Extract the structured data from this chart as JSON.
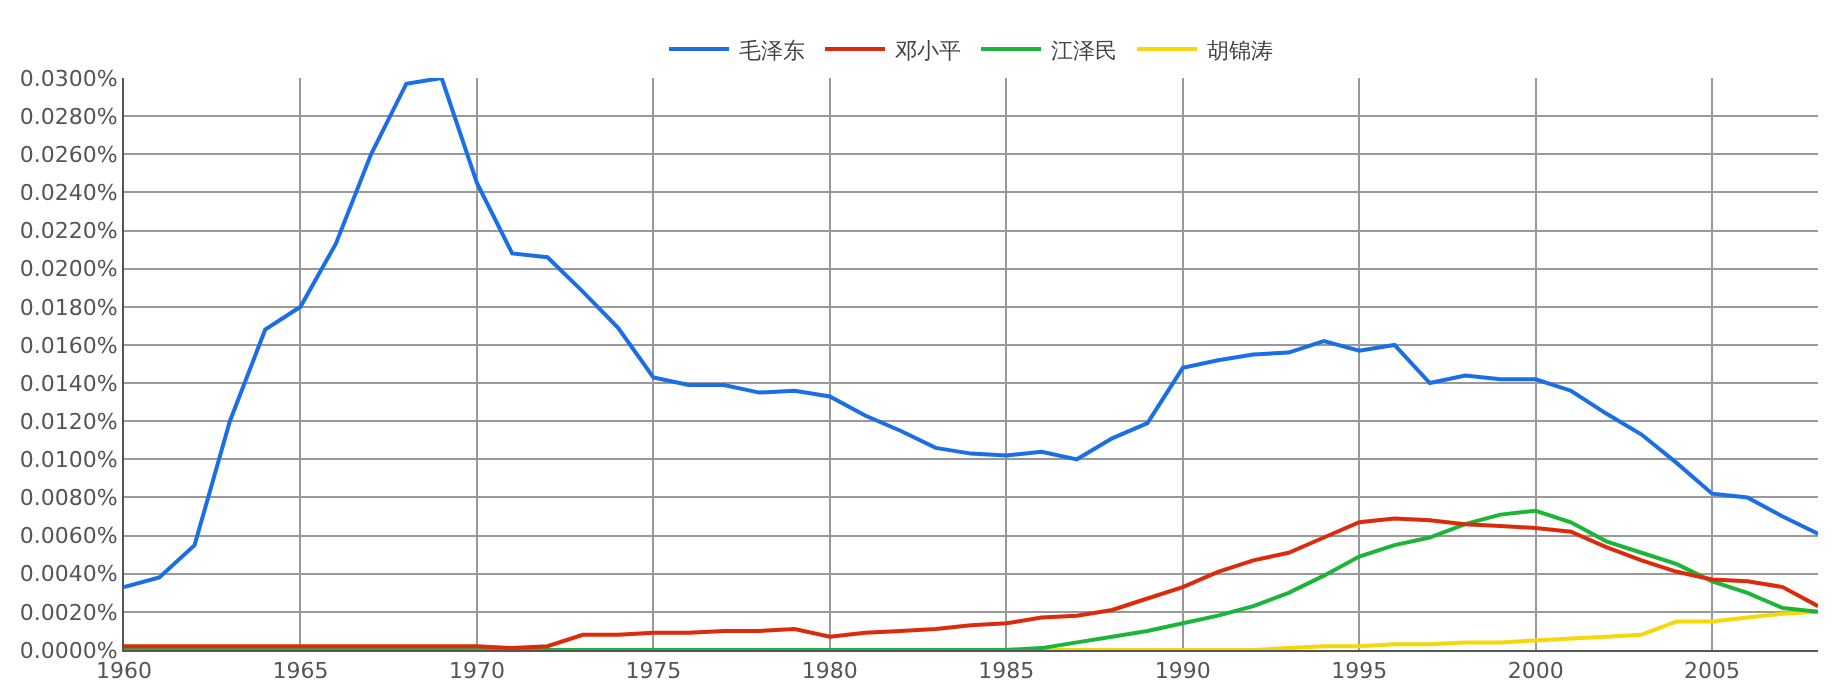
{
  "chart_data": {
    "type": "line",
    "legend": "top",
    "grid": true,
    "line_style": "solid",
    "marker": "none",
    "x": [
      1960,
      1961,
      1962,
      1963,
      1964,
      1965,
      1966,
      1967,
      1968,
      1969,
      1970,
      1971,
      1972,
      1973,
      1974,
      1975,
      1976,
      1977,
      1978,
      1979,
      1980,
      1981,
      1982,
      1983,
      1984,
      1985,
      1986,
      1987,
      1988,
      1989,
      1990,
      1991,
      1992,
      1993,
      1994,
      1995,
      1996,
      1997,
      1998,
      1999,
      2000,
      2001,
      2002,
      2003,
      2004,
      2005,
      2006,
      2007,
      2008
    ],
    "xlim": [
      1960,
      2008
    ],
    "xticks": [
      1960,
      1965,
      1970,
      1975,
      1980,
      1985,
      1990,
      1995,
      2000,
      2005
    ],
    "ylim": [
      0,
      0.03
    ],
    "yticks": [
      {
        "value": 0,
        "label": "0.0000%"
      },
      {
        "value": 0.002,
        "label": "0.0020%"
      },
      {
        "value": 0.004,
        "label": "0.0040%"
      },
      {
        "value": 0.006,
        "label": "0.0060%"
      },
      {
        "value": 0.008,
        "label": "0.0080%"
      },
      {
        "value": 0.01,
        "label": "0.0100%"
      },
      {
        "value": 0.012,
        "label": "0.0120%"
      },
      {
        "value": 0.014,
        "label": "0.0140%"
      },
      {
        "value": 0.016,
        "label": "0.0160%"
      },
      {
        "value": 0.018,
        "label": "0.0180%"
      },
      {
        "value": 0.02,
        "label": "0.0200%"
      },
      {
        "value": 0.022,
        "label": "0.0220%"
      },
      {
        "value": 0.024,
        "label": "0.0240%"
      },
      {
        "value": 0.026,
        "label": "0.0260%"
      },
      {
        "value": 0.028,
        "label": "0.0280%"
      },
      {
        "value": 0.03,
        "label": "0.0300%"
      }
    ],
    "series": [
      {
        "name": "毛泽东",
        "color": "#1a6ee6",
        "values": [
          0.0033,
          0.0038,
          0.0055,
          0.012,
          0.0168,
          0.018,
          0.0213,
          0.026,
          0.0297,
          0.03,
          0.0245,
          0.0208,
          0.0206,
          0.0188,
          0.0169,
          0.0143,
          0.0139,
          0.0139,
          0.0135,
          0.0136,
          0.0133,
          0.0123,
          0.0115,
          0.0106,
          0.0103,
          0.0102,
          0.0104,
          0.01,
          0.0111,
          0.0119,
          0.0148,
          0.0152,
          0.0155,
          0.0156,
          0.0162,
          0.0157,
          0.016,
          0.014,
          0.0144,
          0.0142,
          0.0142,
          0.0136,
          0.0124,
          0.0113,
          0.0098,
          0.0082,
          0.008,
          0.007,
          0.0061
        ]
      },
      {
        "name": "邓小平",
        "color": "#dc2a0c",
        "values": [
          0.0002,
          0.0002,
          0.0002,
          0.0002,
          0.0002,
          0.0002,
          0.0002,
          0.0002,
          0.0002,
          0.0002,
          0.0002,
          0.0001,
          0.0002,
          0.0008,
          0.0008,
          0.0009,
          0.0009,
          0.001,
          0.001,
          0.0011,
          0.0007,
          0.0009,
          0.001,
          0.0011,
          0.0013,
          0.0014,
          0.0017,
          0.0018,
          0.0021,
          0.0027,
          0.0033,
          0.0041,
          0.0047,
          0.0051,
          0.0059,
          0.0067,
          0.0069,
          0.0068,
          0.0066,
          0.0065,
          0.0064,
          0.0062,
          0.0054,
          0.0047,
          0.0041,
          0.0037,
          0.0036,
          0.0033,
          0.0023
        ]
      },
      {
        "name": "江泽民",
        "color": "#1db43a",
        "values": [
          0,
          0,
          0,
          0,
          0,
          0,
          0,
          0,
          0,
          0,
          0,
          0,
          0,
          0,
          0,
          0,
          0,
          0,
          0,
          0,
          0,
          0,
          0,
          0,
          0,
          0,
          0.0001,
          0.0004,
          0.0007,
          0.001,
          0.0014,
          0.0018,
          0.0023,
          0.003,
          0.0039,
          0.0049,
          0.0055,
          0.0059,
          0.0066,
          0.0071,
          0.0073,
          0.0067,
          0.0057,
          0.0051,
          0.0045,
          0.0036,
          0.003,
          0.0022,
          0.002
        ]
      },
      {
        "name": "胡锦涛",
        "color": "#f5d70a",
        "values": [
          null,
          null,
          null,
          null,
          null,
          null,
          null,
          null,
          null,
          null,
          null,
          null,
          null,
          null,
          null,
          null,
          null,
          null,
          null,
          null,
          null,
          null,
          null,
          null,
          null,
          null,
          0,
          0,
          0,
          0,
          0,
          0,
          0,
          0.0001,
          0.0002,
          0.0002,
          0.0003,
          0.0003,
          0.0004,
          0.0004,
          0.0005,
          0.0006,
          0.0007,
          0.0008,
          0.0015,
          0.0015,
          0.0017,
          0.0019,
          0.002
        ]
      }
    ]
  }
}
